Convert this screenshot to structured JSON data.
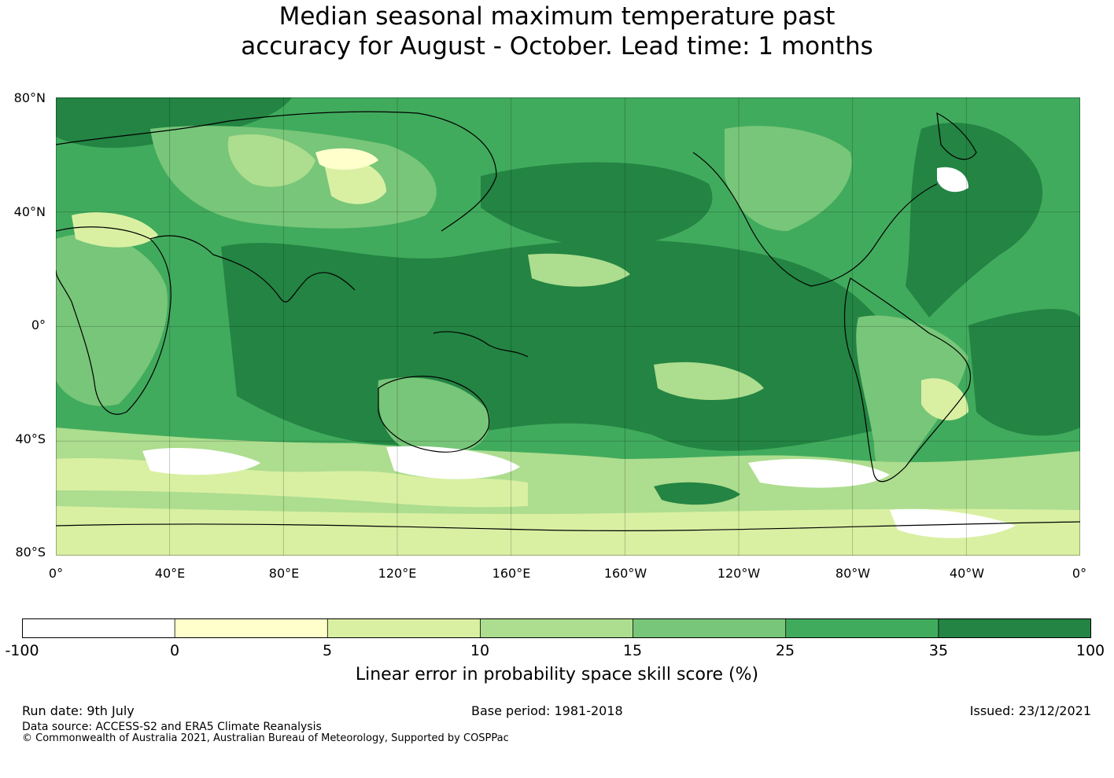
{
  "title": {
    "line1": "Median seasonal maximum temperature past",
    "line2": "accuracy for August - October. Lead time: 1 months"
  },
  "map": {
    "lat_labels": [
      "80°N",
      "40°N",
      "0°",
      "40°S",
      "80°S"
    ],
    "lon_labels": [
      "0°",
      "40°E",
      "80°E",
      "120°E",
      "160°E",
      "160°W",
      "120°W",
      "80°W",
      "40°W",
      "0°"
    ]
  },
  "colorbar": {
    "label": "Linear error in probability space skill score (%)",
    "ticks": [
      "-100",
      "0",
      "5",
      "10",
      "15",
      "25",
      "35",
      "100"
    ],
    "colors": [
      "#ffffff",
      "#ffffcc",
      "#d9f0a3",
      "#addd8e",
      "#78c679",
      "#41ab5d",
      "#238443"
    ]
  },
  "footer": {
    "run_date": "Run date: 9th July",
    "base_period": "Base period: 1981-2018",
    "issued": "Issued: 23/12/2021",
    "data_source": "Data source: ACCESS-S2 and ERA5 Climate Reanalysis",
    "copyright": "© Commonwealth of Australia 2021, Australian Bureau of Meteorology, Supported by COSPPac"
  }
}
